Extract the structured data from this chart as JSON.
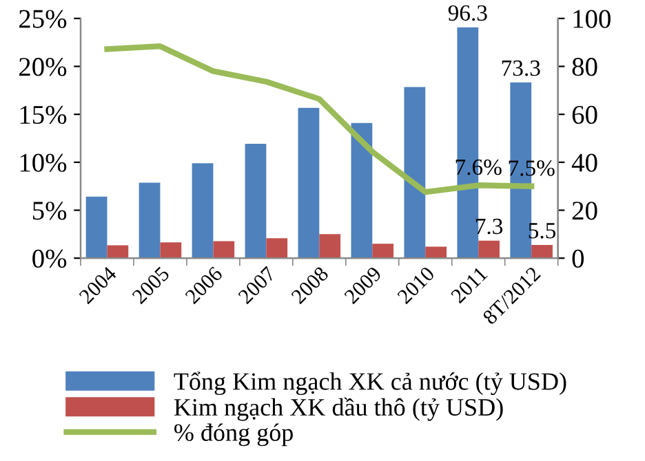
{
  "chart_data": {
    "type": "bar",
    "categories": [
      "2004",
      "2005",
      "2006",
      "2007",
      "2008",
      "2009",
      "2010",
      "2011",
      "8T/2012"
    ],
    "series": [
      {
        "name": "Tổng Kim ngạch XK cả nước (tỷ USD)",
        "axis": "y2",
        "color": "#4f81bd",
        "values": [
          25.7,
          31.5,
          39.6,
          47.7,
          62.7,
          56.4,
          71.4,
          96.3,
          73.3
        ],
        "value_labels": [
          null,
          null,
          null,
          null,
          null,
          null,
          null,
          "96.3",
          "73.3"
        ]
      },
      {
        "name": "Kim ngạch XK dầu thô (tỷ USD)",
        "axis": "y2",
        "color": "#c0504d",
        "values": [
          5.4,
          6.6,
          7.1,
          8.3,
          10.0,
          6.0,
          4.8,
          7.3,
          5.5
        ],
        "value_labels": [
          null,
          null,
          null,
          null,
          null,
          null,
          null,
          "7.3",
          "5.5"
        ]
      },
      {
        "name": "% đóng góp",
        "type": "line",
        "color": "#9bbb59",
        "values": [
          21.8,
          22.1,
          19.5,
          18.4,
          16.6,
          11.1,
          6.9,
          7.6,
          7.5
        ],
        "value_labels": [
          null,
          null,
          null,
          null,
          null,
          null,
          null,
          "7.6%",
          "7.5%"
        ]
      }
    ],
    "ylim": [
      0,
      25
    ],
    "yticks": [
      {
        "value": 0,
        "label": "0%"
      },
      {
        "value": 5,
        "label": "5%"
      },
      {
        "value": 10,
        "label": "10%"
      },
      {
        "value": 15,
        "label": "15%"
      },
      {
        "value": 20,
        "label": "20%"
      },
      {
        "value": 25,
        "label": "25%"
      }
    ],
    "y2lim": [
      0,
      100
    ],
    "y2ticks": [
      0,
      20,
      40,
      60,
      80,
      100
    ],
    "legend": "bottom",
    "marker": "none"
  }
}
